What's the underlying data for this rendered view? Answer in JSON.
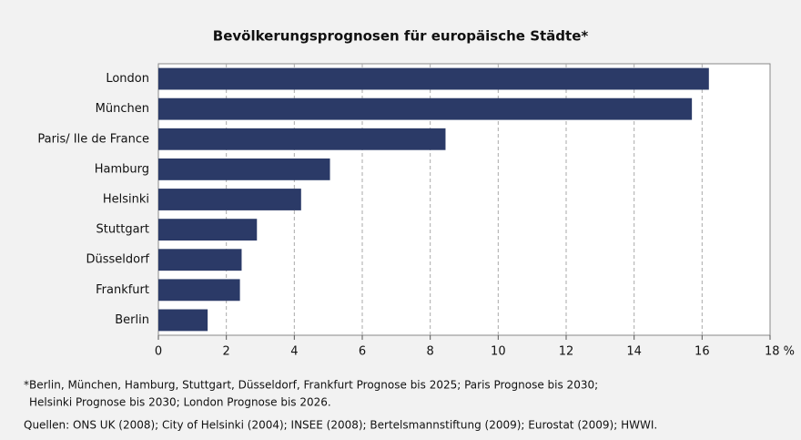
{
  "chart_data": {
    "type": "bar",
    "orientation": "horizontal",
    "title": "Bevölkerungsprognosen für europäische Städte*",
    "categories": [
      "London",
      "München",
      "Paris/ Ile de France",
      "Hamburg",
      "Helsinki",
      "Stuttgart",
      "Düsseldorf",
      "Frankfurt",
      "Berlin"
    ],
    "values": [
      16.2,
      15.7,
      8.45,
      5.05,
      4.2,
      2.9,
      2.45,
      2.4,
      1.45
    ],
    "color": "#2b3a67",
    "xlim": [
      0,
      18
    ],
    "xticks": [
      0,
      2,
      4,
      6,
      8,
      10,
      12,
      14,
      16,
      {
        "value": 18,
        "label": "18 %"
      }
    ],
    "grid": true,
    "notes": [
      "*Berlin, München, Hamburg, Stuttgart, Düsseldorf, Frankfurt Prognose bis 2025; Paris Prognose bis 2030;",
      "Helsinki Prognose bis 2030; London Prognose bis 2026.",
      "Quellen: ONS UK (2008); City of Helsinki (2004); INSEE (2008); Bertelsmannstiftung (2009); Eurostat (2009); HWWI."
    ]
  }
}
